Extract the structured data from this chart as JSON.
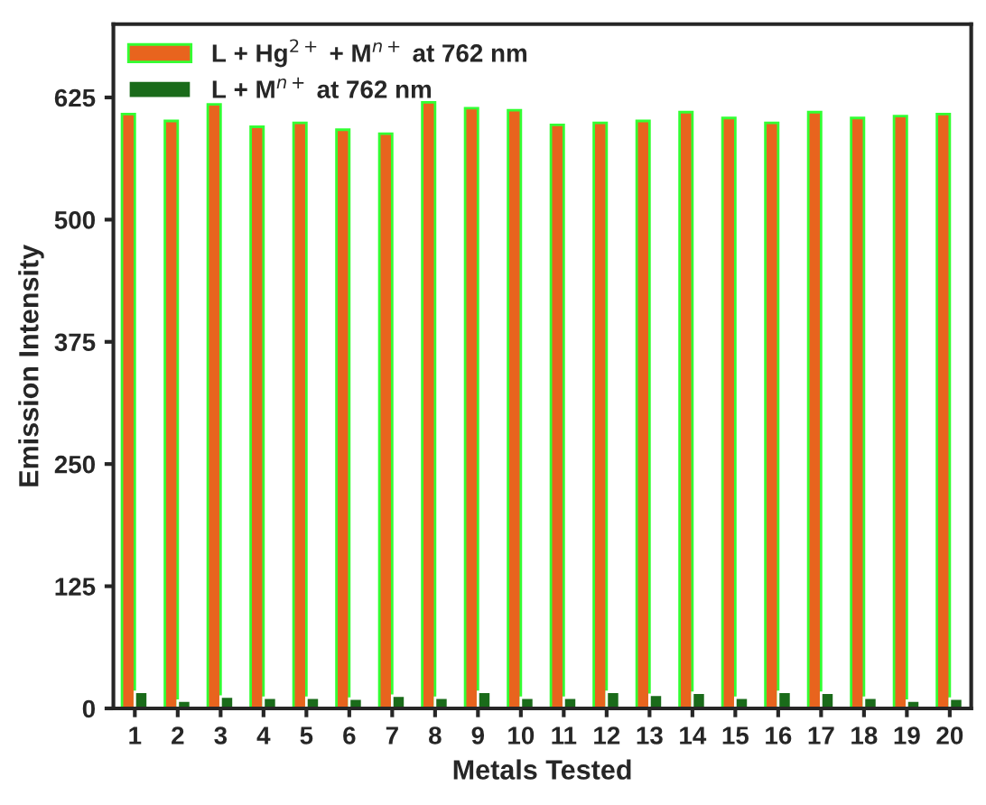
{
  "chart_data": {
    "type": "bar",
    "xlabel": "Metals Tested",
    "ylabel": "Emission Intensity",
    "categories": [
      "1",
      "2",
      "3",
      "4",
      "5",
      "6",
      "7",
      "8",
      "9",
      "10",
      "11",
      "12",
      "13",
      "14",
      "15",
      "16",
      "17",
      "18",
      "19",
      "20"
    ],
    "series": [
      {
        "name": "L + Hg$^{2+}$ + M$^{n+}$ at 762 nm",
        "color": "#e8641e",
        "values": [
          608,
          601,
          618,
          595,
          599,
          592,
          588,
          620,
          614,
          612,
          597,
          599,
          601,
          610,
          604,
          599,
          610,
          604,
          606,
          608
        ]
      },
      {
        "name": "L + M$^{n+}$ at 762 nm",
        "color": "#1a6b1a",
        "values": [
          17,
          8,
          12,
          11,
          11,
          10,
          13,
          11,
          17,
          11,
          11,
          17,
          14,
          16,
          11,
          17,
          16,
          11,
          8,
          10
        ]
      }
    ],
    "ylim": [
      0,
      700
    ],
    "yticks": [
      0,
      125,
      250,
      375,
      500,
      625
    ],
    "grid": false,
    "legend": "top left"
  }
}
